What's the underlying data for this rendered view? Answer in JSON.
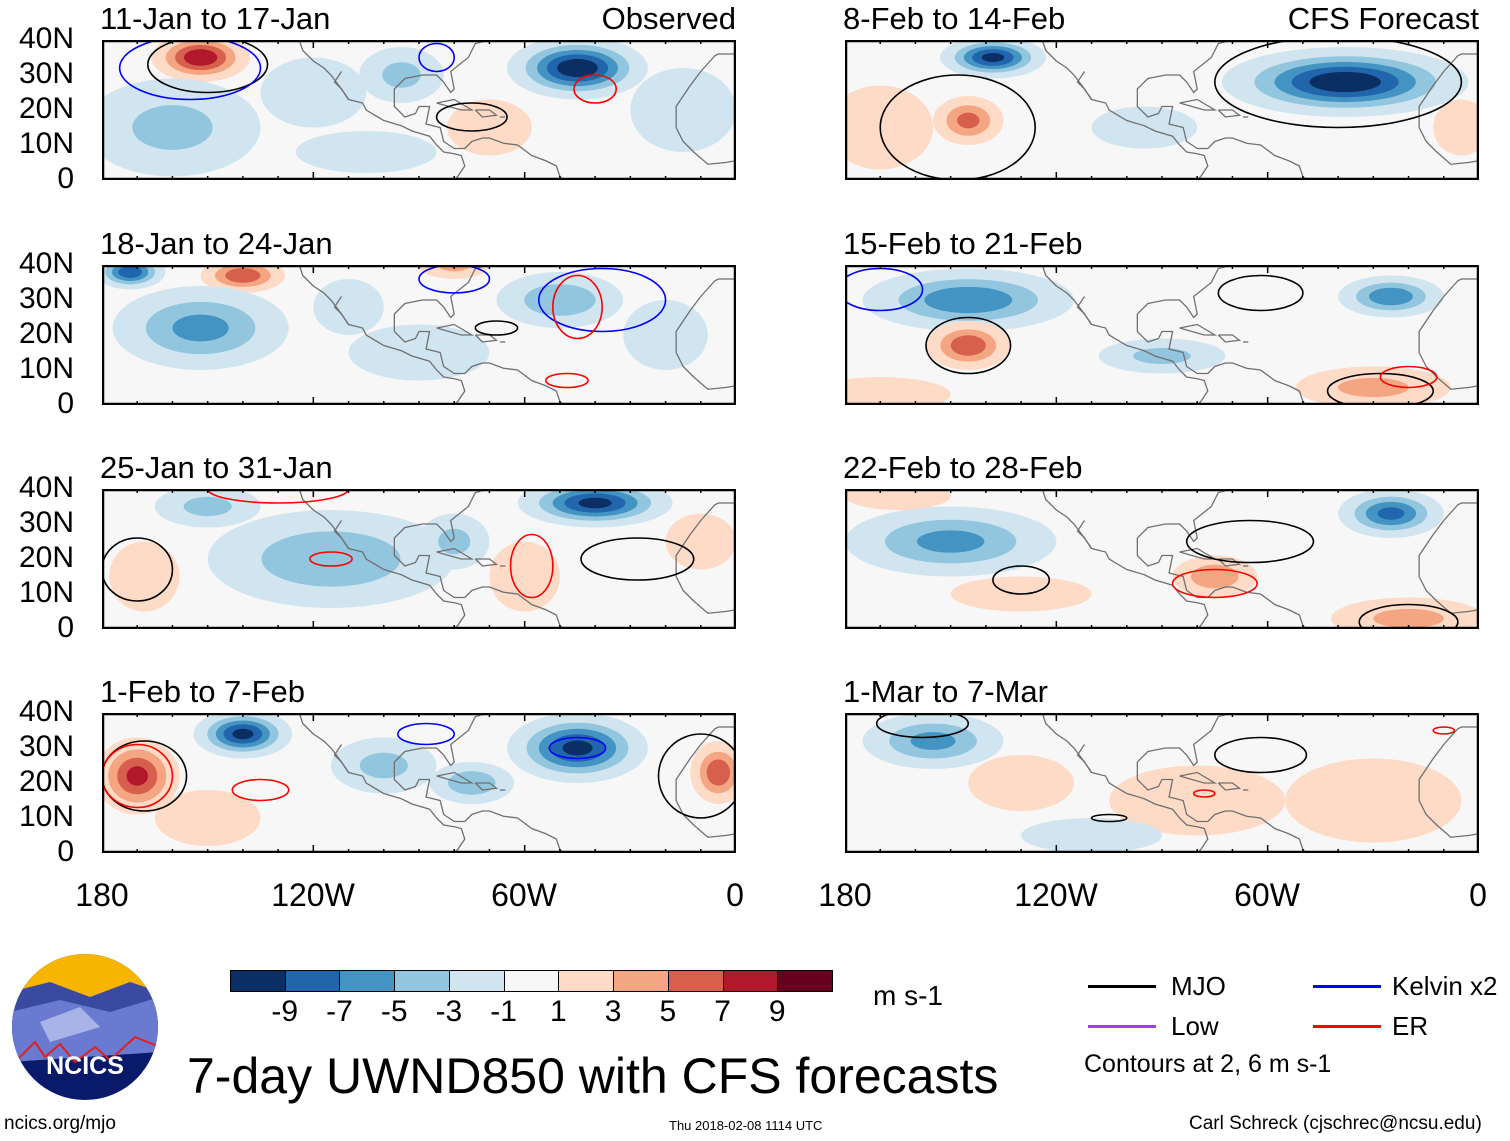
{
  "title": "7-day UWND850 with CFS forecasts",
  "footer": {
    "url": "ncics.org/mjo",
    "timestamp": "Thu 2018-02-08 1114 UTC",
    "author": "Carl Schreck (cjschrec@ncsu.edu)"
  },
  "logo": {
    "text": "NCICS"
  },
  "headers": {
    "observed": "Observed",
    "forecast": "CFS Forecast"
  },
  "lat_labels": [
    "40N",
    "30N",
    "20N",
    "10N",
    "0"
  ],
  "lon_labels": [
    "180",
    "120W",
    "60W",
    "0"
  ],
  "colorbar": {
    "units": "m s-1",
    "labels": [
      "-9",
      "-7",
      "-5",
      "-3",
      "-1",
      "1",
      "3",
      "5",
      "7",
      "9"
    ],
    "colors": [
      "#0b2f64",
      "#2166ac",
      "#4393c3",
      "#92c5de",
      "#d1e5f0",
      "#f7f7f7",
      "#fddbc7",
      "#f4a582",
      "#d6604d",
      "#b2182b",
      "#67001f"
    ]
  },
  "legend": {
    "items": [
      {
        "label": "MJO",
        "color": "#000000"
      },
      {
        "label": "Kelvin x2",
        "color": "#0000ff"
      },
      {
        "label": "Low",
        "color": "#a040e0"
      },
      {
        "label": "ER",
        "color": "#ff0000"
      }
    ],
    "note": "Contours at 2, 6 m s-1"
  },
  "chart_data": {
    "type": "heatmap",
    "variable": "850-hPa zonal wind anomaly (m s-1)",
    "lon_range": [
      -180,
      0
    ],
    "lat_range": [
      0,
      40
    ],
    "panels": [
      {
        "label": "11-Jan to 17-Jan",
        "kind": "observed",
        "features": [
          [
            -152,
            35,
            14,
            7,
            9
          ],
          [
            -45,
            32,
            20,
            9,
            -11
          ],
          [
            -160,
            15,
            25,
            14,
            -4
          ],
          [
            -120,
            25,
            15,
            10,
            -3
          ],
          [
            -95,
            30,
            12,
            8,
            -4
          ],
          [
            -70,
            15,
            12,
            8,
            2
          ],
          [
            -15,
            20,
            15,
            12,
            -3
          ],
          [
            -105,
            8,
            20,
            6,
            -2
          ]
        ],
        "contours": [
          [
            -150,
            33,
            17,
            8,
            "mjo"
          ],
          [
            -155,
            32,
            20,
            9,
            "kelvin"
          ],
          [
            -40,
            26,
            6,
            4,
            "er"
          ],
          [
            -85,
            35,
            5,
            4,
            "kelvin"
          ],
          [
            -75,
            18,
            10,
            4,
            "mjo"
          ]
        ]
      },
      {
        "label": "18-Jan to 24-Jan",
        "kind": "observed",
        "features": [
          [
            -172,
            38,
            10,
            5,
            -9
          ],
          [
            -140,
            37,
            12,
            5,
            7
          ],
          [
            -152,
            22,
            25,
            12,
            -6
          ],
          [
            -50,
            30,
            18,
            8,
            -5
          ],
          [
            -110,
            28,
            10,
            8,
            -3
          ],
          [
            -90,
            15,
            20,
            8,
            -3
          ],
          [
            -80,
            40,
            10,
            4,
            4
          ],
          [
            -20,
            20,
            12,
            10,
            -3
          ]
        ],
        "contours": [
          [
            -38,
            30,
            18,
            9,
            "kelvin"
          ],
          [
            -45,
            28,
            7,
            9,
            "er"
          ],
          [
            -80,
            36,
            10,
            4,
            "kelvin"
          ],
          [
            -68,
            22,
            6,
            2,
            "mjo"
          ],
          [
            -48,
            7,
            6,
            2,
            "er"
          ]
        ]
      },
      {
        "label": "25-Jan to 31-Jan",
        "kind": "observed",
        "features": [
          [
            -40,
            36,
            22,
            7,
            -10
          ],
          [
            -115,
            20,
            35,
            14,
            -5
          ],
          [
            -168,
            15,
            10,
            10,
            3
          ],
          [
            -60,
            15,
            10,
            10,
            3
          ],
          [
            -150,
            35,
            15,
            6,
            -4
          ],
          [
            -80,
            25,
            10,
            8,
            -4
          ],
          [
            -10,
            25,
            10,
            8,
            2
          ]
        ],
        "contours": [
          [
            -58,
            18,
            6,
            9,
            "er"
          ],
          [
            -28,
            20,
            16,
            6,
            "mjo"
          ],
          [
            -170,
            17,
            10,
            9,
            "mjo"
          ],
          [
            -115,
            20,
            6,
            2,
            "er"
          ],
          [
            -130,
            40,
            20,
            4,
            "er"
          ]
        ]
      },
      {
        "label": "1-Feb to 7-Feb",
        "kind": "observed",
        "features": [
          [
            -140,
            34,
            14,
            7,
            -10
          ],
          [
            -45,
            30,
            20,
            10,
            -10
          ],
          [
            -170,
            22,
            12,
            11,
            8
          ],
          [
            -5,
            23,
            8,
            9,
            7
          ],
          [
            -100,
            25,
            15,
            8,
            -4
          ],
          [
            -75,
            20,
            12,
            6,
            -5
          ],
          [
            -150,
            10,
            15,
            8,
            3
          ]
        ],
        "contours": [
          [
            -168,
            22,
            12,
            10,
            "mjo"
          ],
          [
            -170,
            22,
            10,
            9,
            "er"
          ],
          [
            -45,
            30,
            8,
            3,
            "kelvin"
          ],
          [
            -88,
            34,
            8,
            3,
            "kelvin"
          ],
          [
            -135,
            18,
            8,
            3,
            "er"
          ],
          [
            -10,
            22,
            12,
            12,
            "mjo"
          ]
        ]
      },
      {
        "label": "8-Feb to 14-Feb",
        "kind": "forecast",
        "features": [
          [
            -138,
            35,
            15,
            6,
            -10
          ],
          [
            -38,
            28,
            35,
            10,
            -11
          ],
          [
            -145,
            17,
            10,
            7,
            6
          ],
          [
            -170,
            15,
            15,
            12,
            2
          ],
          [
            -95,
            15,
            15,
            6,
            -3
          ],
          [
            -5,
            15,
            8,
            8,
            3
          ]
        ],
        "contours": [
          [
            -148,
            15,
            22,
            15,
            "mjo"
          ],
          [
            -40,
            28,
            35,
            13,
            "mjo"
          ]
        ]
      },
      {
        "label": "15-Feb to 21-Feb",
        "kind": "forecast",
        "features": [
          [
            -145,
            30,
            30,
            9,
            -7
          ],
          [
            -25,
            31,
            15,
            6,
            -7
          ],
          [
            -145,
            17,
            12,
            7,
            7
          ],
          [
            -30,
            5,
            22,
            6,
            4
          ],
          [
            -90,
            14,
            18,
            5,
            -4
          ],
          [
            -170,
            3,
            20,
            5,
            2
          ]
        ],
        "contours": [
          [
            -145,
            17,
            12,
            8,
            "mjo"
          ],
          [
            -62,
            32,
            12,
            5,
            "mjo"
          ],
          [
            -28,
            4,
            15,
            5,
            "mjo"
          ],
          [
            -20,
            8,
            8,
            3,
            "er"
          ],
          [
            -170,
            33,
            12,
            6,
            "kelvin"
          ]
        ]
      },
      {
        "label": "22-Feb to 28-Feb",
        "kind": "forecast",
        "features": [
          [
            -150,
            25,
            30,
            10,
            -6
          ],
          [
            -25,
            33,
            15,
            7,
            -8
          ],
          [
            -75,
            15,
            12,
            6,
            5
          ],
          [
            -20,
            3,
            22,
            6,
            4
          ],
          [
            -165,
            38,
            15,
            4,
            3
          ],
          [
            -130,
            10,
            20,
            5,
            2
          ]
        ],
        "contours": [
          [
            -65,
            25,
            18,
            6,
            "mjo"
          ],
          [
            -75,
            13,
            12,
            4,
            "er"
          ],
          [
            -20,
            2,
            14,
            5,
            "mjo"
          ],
          [
            -130,
            14,
            8,
            4,
            "mjo"
          ]
        ]
      },
      {
        "label": "1-Mar to 7-Mar",
        "kind": "forecast",
        "features": [
          [
            -155,
            32,
            20,
            8,
            -6
          ],
          [
            -80,
            15,
            25,
            10,
            2
          ],
          [
            -30,
            15,
            25,
            12,
            2
          ],
          [
            -130,
            20,
            15,
            8,
            2
          ],
          [
            -110,
            5,
            20,
            5,
            -2
          ]
        ],
        "contours": [
          [
            -158,
            37,
            13,
            4,
            "mjo"
          ],
          [
            -62,
            28,
            13,
            5,
            "mjo"
          ],
          [
            -105,
            10,
            5,
            1,
            "mjo"
          ],
          [
            -78,
            17,
            3,
            1,
            "er"
          ],
          [
            -10,
            35,
            3,
            1,
            "er"
          ]
        ]
      }
    ]
  }
}
